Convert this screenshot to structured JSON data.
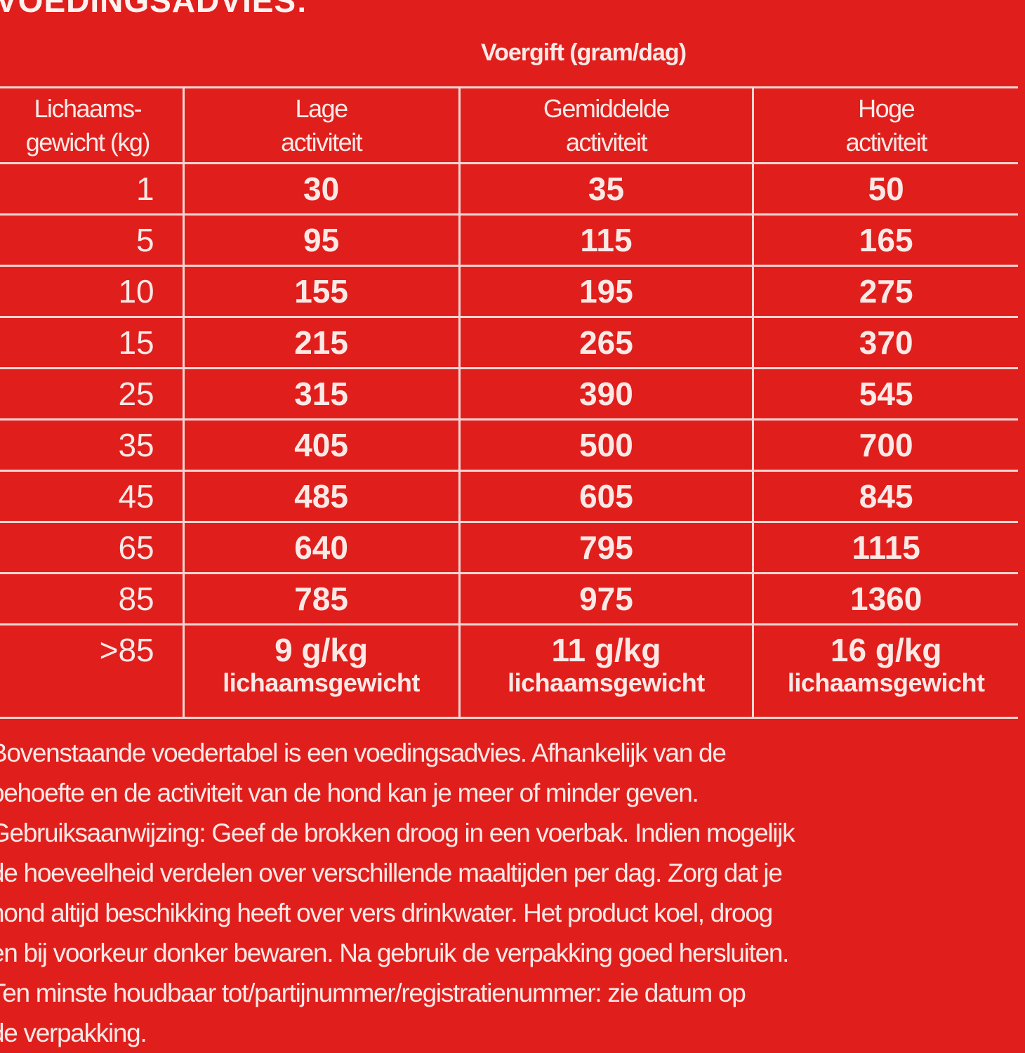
{
  "title": "VOEDINGSADVIES:",
  "table": {
    "group_header": "Voergift (gram/dag)",
    "headers": [
      {
        "line1": "Lichaams-",
        "line2": "gewicht (kg)"
      },
      {
        "line1": "Lage",
        "line2": "activiteit"
      },
      {
        "line1": "Gemiddelde",
        "line2": "activiteit"
      },
      {
        "line1": "Hoge",
        "line2": "activiteit"
      }
    ],
    "rows": [
      [
        "1",
        "30",
        "35",
        "50"
      ],
      [
        "5",
        "95",
        "115",
        "165"
      ],
      [
        "10",
        "155",
        "195",
        "275"
      ],
      [
        "15",
        "215",
        "265",
        "370"
      ],
      [
        "25",
        "315",
        "390",
        "545"
      ],
      [
        "35",
        "405",
        "500",
        "700"
      ],
      [
        "45",
        "485",
        "605",
        "845"
      ],
      [
        "65",
        "640",
        "795",
        "1115"
      ],
      [
        "85",
        "785",
        "975",
        "1360"
      ]
    ],
    "last_row": {
      "weight": ">85",
      "cells": [
        {
          "value": "9 g/kg",
          "unit": "lichaamsgewicht"
        },
        {
          "value": "11 g/kg",
          "unit": "lichaamsgewicht"
        },
        {
          "value": "16 g/kg",
          "unit": "lichaamsgewicht"
        }
      ]
    }
  },
  "notes": [
    "Bovenstaande voedertabel is een voedingsadvies. Afhankelijk van de",
    "behoefte en de activiteit van de hond kan je meer of minder geven.",
    "Gebruiksaanwijzing: Geef de brokken droog in een voerbak. Indien mogelijk",
    "de hoeveelheid verdelen over verschillende maaltijden per dag. Zorg dat je",
    "hond altijd beschikking heeft over vers drinkwater. Het product koel, droog",
    "en bij voorkeur donker bewaren. Na gebruik de verpakking goed hersluiten.",
    "Ten minste houdbaar tot/partijnummer/registratienummer: zie datum op",
    "de verpakking."
  ],
  "colors": {
    "background": "#e01f1d",
    "text": "#fbe9e6",
    "rules": "#f3d6d2"
  }
}
